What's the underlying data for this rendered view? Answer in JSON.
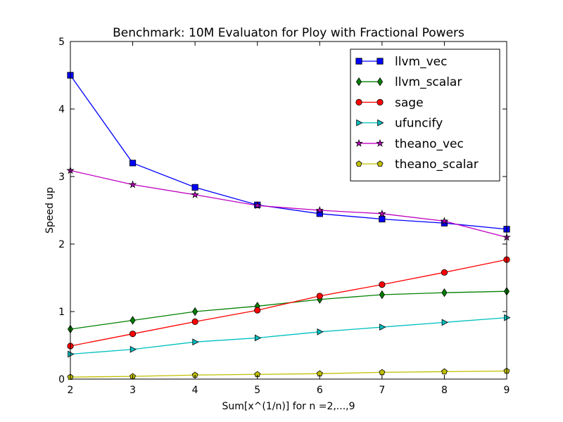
{
  "chart_data": {
    "type": "line",
    "title": "Benchmark: 10M Evaluaton for Ploy with Fractional Powers",
    "xlabel": "Sum[x^(1/n)] for n =2,...,9",
    "ylabel": "Speed up",
    "xlim": [
      2,
      9
    ],
    "ylim": [
      0,
      5
    ],
    "xticks": [
      2,
      3,
      4,
      5,
      6,
      7,
      8,
      9
    ],
    "yticks": [
      0,
      1,
      2,
      3,
      4,
      5
    ],
    "grid": false,
    "legend_position": "top-right",
    "x": [
      2,
      3,
      4,
      5,
      6,
      7,
      8,
      9
    ],
    "series": [
      {
        "name": "llvm_vec",
        "color": "#0000ff",
        "marker": "square",
        "values": [
          4.5,
          3.2,
          2.84,
          2.58,
          2.45,
          2.37,
          2.31,
          2.22
        ]
      },
      {
        "name": "llvm_scalar",
        "color": "#008000",
        "marker": "diamond",
        "values": [
          0.74,
          0.87,
          1.0,
          1.08,
          1.18,
          1.25,
          1.28,
          1.3
        ]
      },
      {
        "name": "sage",
        "color": "#ff0000",
        "marker": "circle",
        "values": [
          0.49,
          0.67,
          0.85,
          1.02,
          1.23,
          1.4,
          1.58,
          1.77
        ]
      },
      {
        "name": "ufuncify",
        "color": "#00bfbf",
        "marker": "triangle-right",
        "values": [
          0.37,
          0.44,
          0.55,
          0.61,
          0.7,
          0.77,
          0.84,
          0.91
        ]
      },
      {
        "name": "theano_vec",
        "color": "#bf00bf",
        "marker": "star",
        "values": [
          3.09,
          2.88,
          2.73,
          2.57,
          2.5,
          2.45,
          2.34,
          2.1
        ]
      },
      {
        "name": "theano_scalar",
        "color": "#bfbf00",
        "marker": "pentagon",
        "values": [
          0.03,
          0.04,
          0.06,
          0.07,
          0.08,
          0.1,
          0.11,
          0.12
        ]
      }
    ]
  }
}
